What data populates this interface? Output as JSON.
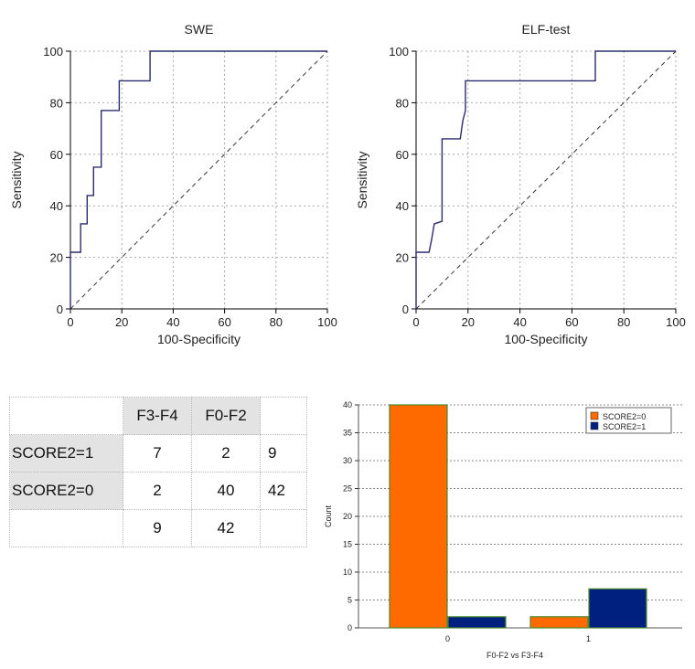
{
  "chart_data": [
    {
      "type": "line",
      "title": "SWE",
      "xlabel": "100-Specificity",
      "ylabel": "Sensitivity",
      "xlim": [
        0,
        100
      ],
      "ylim": [
        0,
        100
      ],
      "x_ticks": [
        "0",
        "20",
        "40",
        "60",
        "80",
        "100"
      ],
      "y_ticks": [
        "0",
        "20",
        "40",
        "60",
        "80",
        "100"
      ],
      "grid": true,
      "series": [
        {
          "x": [
            0,
            0,
            4,
            4,
            6.5,
            6.5,
            9,
            9,
            12,
            12,
            19,
            19,
            31,
            31,
            100
          ],
          "y": [
            0,
            22,
            22,
            33,
            33,
            44,
            44,
            55,
            55,
            77,
            77,
            88.5,
            88.5,
            100,
            100
          ]
        },
        {
          "style": "dashed",
          "x": [
            0,
            100
          ],
          "y": [
            0,
            100
          ]
        }
      ]
    },
    {
      "type": "line",
      "title": "ELF-test",
      "xlabel": "100-Specificity",
      "ylabel": "Sensitivity",
      "xlim": [
        0,
        100
      ],
      "ylim": [
        0,
        100
      ],
      "x_ticks": [
        "0",
        "20",
        "40",
        "60",
        "80",
        "100"
      ],
      "y_ticks": [
        "0",
        "20",
        "40",
        "60",
        "80",
        "100"
      ],
      "grid": true,
      "series": [
        {
          "x": [
            0,
            0,
            5,
            6,
            7,
            7,
            10,
            10,
            17,
            18,
            19,
            19,
            69,
            69,
            100
          ],
          "y": [
            0,
            22,
            22,
            27,
            33,
            33,
            34,
            66,
            66,
            73,
            77,
            88.5,
            88.5,
            100,
            100
          ]
        },
        {
          "style": "dashed",
          "x": [
            0,
            100
          ],
          "y": [
            0,
            100
          ]
        }
      ]
    },
    {
      "type": "table",
      "rows": [
        [
          "",
          "F3-F4",
          "F0-F2",
          ""
        ],
        [
          "SCORE2=1",
          "7",
          "2",
          "9"
        ],
        [
          "SCORE2=0",
          "2",
          "40",
          "42"
        ],
        [
          "",
          "9",
          "42",
          ""
        ]
      ]
    },
    {
      "type": "bar",
      "categories": [
        "0",
        "1"
      ],
      "xlabel": "F0-F2 vs F3-F4",
      "ylabel": "Count",
      "ylim": [
        0,
        40
      ],
      "y_ticks": [
        "0",
        "5",
        "10",
        "15",
        "20",
        "25",
        "30",
        "35",
        "40"
      ],
      "legend": "top-right",
      "series": [
        {
          "name": "SCORE2=0",
          "color": "#ff6a00",
          "values": [
            40,
            2
          ]
        },
        {
          "name": "SCORE2=1",
          "color": "#002080",
          "values": [
            2,
            7
          ]
        }
      ]
    }
  ]
}
